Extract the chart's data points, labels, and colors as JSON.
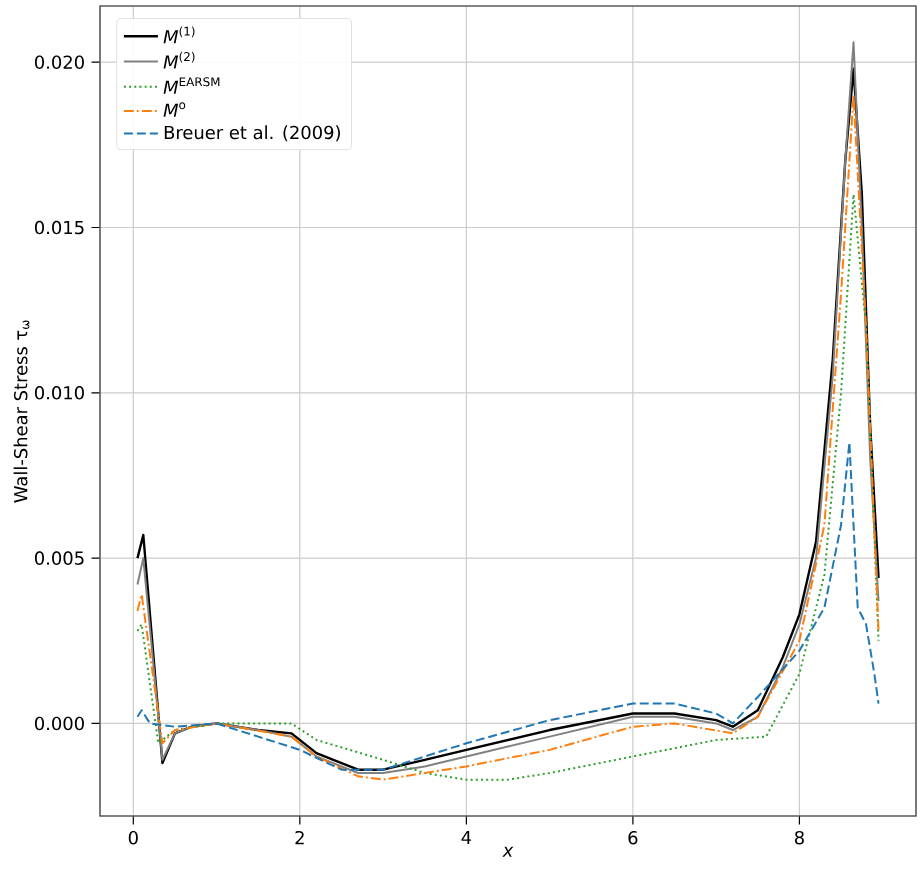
{
  "chart_data": {
    "type": "line",
    "xlabel": "x",
    "ylabel": "Wall-Shear Stress τ$_{ω}$",
    "xlim": [
      -0.4,
      9.4
    ],
    "ylim": [
      -0.0028,
      0.0217
    ],
    "xticks": [
      0,
      2,
      4,
      6,
      8
    ],
    "yticks": [
      {
        "value": 0,
        "label": "0.000"
      },
      {
        "value": 0.005,
        "label": "0.005"
      },
      {
        "value": 0.01,
        "label": "0.010"
      },
      {
        "value": 0.015,
        "label": "0.015"
      },
      {
        "value": 0.02,
        "label": "0.020"
      }
    ],
    "grid": true,
    "legend": "top left",
    "series": [
      {
        "name": "*M*$^{(1)}$",
        "color": "#000000",
        "line_style": "solid",
        "x": [
          0.05,
          0.12,
          0.35,
          0.5,
          0.7,
          1.0,
          1.5,
          1.9,
          2.2,
          2.7,
          3.0,
          3.5,
          4.0,
          5.0,
          6.0,
          6.5,
          7.0,
          7.2,
          7.5,
          7.8,
          8.0,
          8.2,
          8.4,
          8.55,
          8.65,
          8.75,
          8.85,
          8.95
        ],
        "values": [
          0.005,
          0.0057,
          -0.0012,
          -0.0003,
          -0.0001,
          0,
          -0.0002,
          -0.0003,
          -0.0009,
          -0.0014,
          -0.0014,
          -0.0011,
          -0.0008,
          -0.0002,
          0.0003,
          0.0003,
          0.0001,
          -0.0001,
          0.0004,
          0.002,
          0.0033,
          0.0055,
          0.011,
          0.017,
          0.0198,
          0.016,
          0.009,
          0.0044
        ]
      },
      {
        "name": "*M*$^{(2)}$",
        "color": "#808080",
        "line_style": "solid",
        "x": [
          0.05,
          0.12,
          0.35,
          0.5,
          0.7,
          1.0,
          1.5,
          1.9,
          2.2,
          2.7,
          3.0,
          3.5,
          4.0,
          5.0,
          6.0,
          6.5,
          7.0,
          7.2,
          7.5,
          7.8,
          8.0,
          8.2,
          8.4,
          8.55,
          8.65,
          8.75,
          8.85,
          8.95
        ],
        "values": [
          0.0042,
          0.005,
          -0.0011,
          -0.0003,
          -0.0001,
          0,
          -0.0002,
          -0.0004,
          -0.001,
          -0.0015,
          -0.0015,
          -0.0013,
          -0.001,
          -0.0004,
          0.0002,
          0.0002,
          0,
          -0.0002,
          0.0002,
          0.0017,
          0.003,
          0.005,
          0.0105,
          0.017,
          0.0206,
          0.015,
          0.008,
          0.0037
        ]
      },
      {
        "name": "*M*$^{EARSM}$",
        "color": "#2ca02c",
        "line_style": "dotted",
        "x": [
          0.05,
          0.1,
          0.3,
          0.5,
          1.0,
          1.9,
          2.2,
          3.0,
          3.5,
          4.0,
          4.5,
          5.0,
          6.0,
          7.0,
          7.6,
          8.0,
          8.3,
          8.5,
          8.65,
          8.8,
          8.95
        ],
        "values": [
          0.0028,
          0.003,
          -0.0006,
          -0.0002,
          0,
          0,
          -0.0005,
          -0.0011,
          -0.0015,
          -0.0017,
          -0.0017,
          -0.0015,
          -0.001,
          -0.0005,
          -0.0004,
          0.0015,
          0.0045,
          0.01,
          0.016,
          0.012,
          0.0025
        ]
      },
      {
        "name": "*M*$^{o}$",
        "color": "#ff7f0e",
        "line_style": "dashdot",
        "x": [
          0.05,
          0.1,
          0.35,
          0.5,
          1.0,
          1.9,
          2.2,
          2.7,
          3.0,
          4.0,
          5.0,
          6.0,
          6.5,
          7.2,
          7.5,
          8.0,
          8.3,
          8.5,
          8.65,
          8.8,
          8.95
        ],
        "values": [
          0.0034,
          0.0039,
          -0.0006,
          -0.0002,
          0,
          -0.0004,
          -0.001,
          -0.0016,
          -0.0017,
          -0.0013,
          -0.0008,
          -0.0001,
          0,
          -0.0003,
          0.0002,
          0.0025,
          0.006,
          0.013,
          0.019,
          0.012,
          0.0028
        ]
      },
      {
        "name": "Breuer et al. (2009)",
        "color": "#1f77b4",
        "line_style": "dashed",
        "x": [
          0.05,
          0.1,
          0.2,
          0.5,
          1.0,
          1.5,
          2.0,
          2.5,
          3.0,
          4.0,
          5.0,
          6.0,
          6.5,
          7.0,
          7.2,
          7.5,
          8.0,
          8.3,
          8.5,
          8.6,
          8.7,
          8.8,
          8.9,
          8.95
        ],
        "values": [
          0.0002,
          0.0004,
          0,
          -0.0001,
          0,
          -0.0004,
          -0.0008,
          -0.0014,
          -0.0014,
          -0.0006,
          0.0001,
          0.0006,
          0.0006,
          0.0003,
          0,
          0.0008,
          0.0022,
          0.0035,
          0.006,
          0.0085,
          0.0035,
          0.003,
          0.0015,
          0.0006
        ]
      }
    ]
  }
}
